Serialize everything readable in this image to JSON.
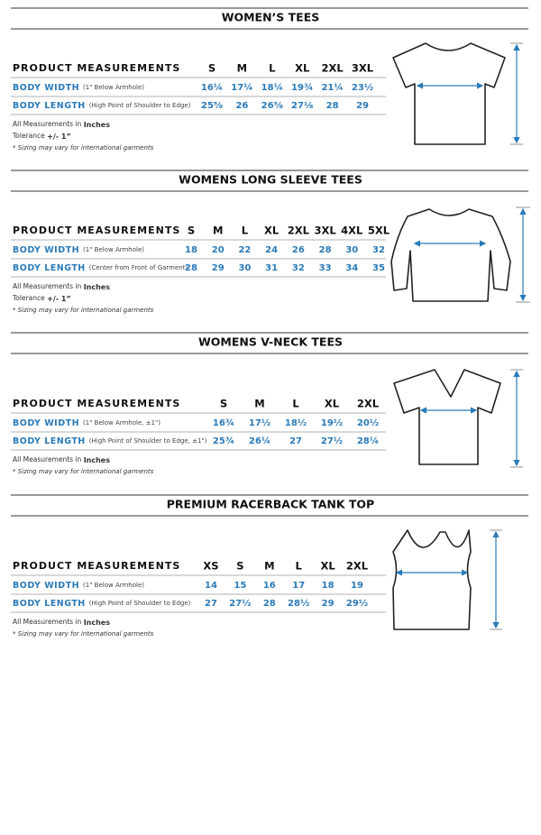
{
  "sections": [
    {
      "title": "WOMEN’S TEES",
      "header": "PRODUCT MEASUREMENTS",
      "sizes": [
        "S",
        "M",
        "L",
        "XL",
        "2XL",
        "3XL"
      ],
      "rows": [
        {
          "label": "BODY WIDTH",
          "note": "(1\" Below Armhole)",
          "values": [
            "16¼",
            "17¼",
            "18¼",
            "19¾",
            "21¼",
            "23½"
          ]
        },
        {
          "label": "BODY LENGTH",
          "note": "(High Point of Shoulder to Edge)",
          "values": [
            "25⅝",
            "26",
            "26⅝",
            "27⅛",
            "28",
            "29"
          ]
        }
      ],
      "notes": [
        [
          "All Measurements in ",
          "Inches"
        ],
        [
          "Tolerance ",
          "+/- 1”"
        ]
      ],
      "disclaimer": "* Sizing may vary for international garments"
    },
    {
      "title": "WOMENS LONG SLEEVE TEES",
      "header": "PRODUCT MEASUREMENTS",
      "sizes": [
        "S",
        "M",
        "L",
        "XL",
        "2XL",
        "3XL",
        "4XL",
        "5XL"
      ],
      "rows": [
        {
          "label": "BODY WIDTH",
          "note": "(1\" Below Armhole)",
          "values": [
            "18",
            "20",
            "22",
            "24",
            "26",
            "28",
            "30",
            "32"
          ]
        },
        {
          "label": "BODY LENGTH",
          "note": "(Center from Front of Garment)",
          "values": [
            "28",
            "29",
            "30",
            "31",
            "32",
            "33",
            "34",
            "35"
          ]
        }
      ],
      "notes": [
        [
          "All Measurements in ",
          "Inches"
        ],
        [
          "Tolerance ",
          "+/- 1”"
        ]
      ],
      "disclaimer": "* Sizing may vary for international garments"
    },
    {
      "title": "WOMENS V-NECK TEES",
      "header": "PRODUCT MEASUREMENTS",
      "sizes": [
        "S",
        "M",
        "L",
        "XL",
        "2XL"
      ],
      "rows": [
        {
          "label": "BODY WIDTH",
          "note": "(1\" Below Armhole, ±1\")",
          "values": [
            "16¾",
            "17½",
            "18½",
            "19½",
            "20½"
          ]
        },
        {
          "label": "BODY LENGTH",
          "note": "(High Point of Shoulder to Edge, ±1\")",
          "values": [
            "25¾",
            "26¼",
            "27",
            "27½",
            "28¼"
          ]
        }
      ],
      "notes": [
        [
          "All Measurements in ",
          "Inches"
        ]
      ],
      "disclaimer": "* Sizing may vary for international garments"
    },
    {
      "title": "PREMIUM RACERBACK TANK TOP",
      "header": "PRODUCT MEASUREMENTS",
      "sizes": [
        "XS",
        "S",
        "M",
        "L",
        "XL",
        "2XL"
      ],
      "rows": [
        {
          "label": "BODY WIDTH",
          "note": "(1\" Below Armhole)",
          "values": [
            "14",
            "15",
            "16",
            "17",
            "18",
            "19"
          ]
        },
        {
          "label": "BODY LENGTH",
          "note": "(High Point of Shoulder to Edge)",
          "values": [
            "27",
            "27½",
            "28",
            "28½",
            "29",
            "29½"
          ]
        }
      ],
      "notes": [
        [
          "All Measurements in ",
          "Inches"
        ]
      ],
      "disclaimer": "* Sizing may vary for international garments"
    }
  ]
}
